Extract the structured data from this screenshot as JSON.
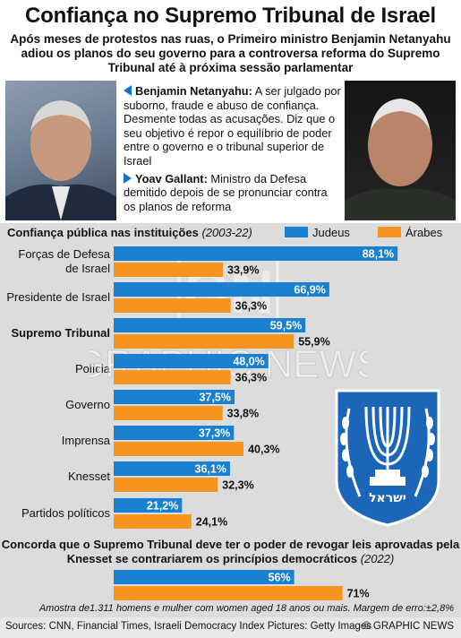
{
  "title": "Confiança no Supremo Tribunal de Israel",
  "subtitle": "Após meses de protestos nas ruas, o Primeiro ministro Benjamin Netanyahu adiou os planos do seu governo para a controversa reforma do Supremo Tribunal até à próxima sessão parlamentar",
  "bio": {
    "netanyahu_name": "Benjamin Netanyahu:",
    "netanyahu_text": "A ser julgado por suborno, fraude e abuso de confiança. Desmente todas as acusações. Diz que o seu objetivo é repor o equilíbrio de poder entre o governo e o tribunal superior de Israel",
    "gallant_name": "Yoav Gallant:",
    "gallant_text": "Ministro da Defesa demitido depois de se pronunciar contra os planos de reforma"
  },
  "colors": {
    "judeus": "#1a80d2",
    "arabes": "#f7941d",
    "accent": "#0e74c8",
    "panel": "#dcdcdc"
  },
  "chart_data": [
    {
      "type": "bar",
      "orientation": "horizontal",
      "title": "Confiança pública nas instituições",
      "title_years": "(2003-22)",
      "categories": [
        "Forças de Defesa de Israel",
        "Presidente de Israel",
        "Supremo Tribunal",
        "Polícia",
        "Governo",
        "Imprensa",
        "Knesset",
        "Partidos políticos"
      ],
      "category_lines": [
        [
          "Forças de Defesa",
          "de Israel"
        ],
        [
          "Presidente de Israel"
        ],
        [
          "Supremo Tribunal"
        ],
        [
          "Polícia"
        ],
        [
          "Governo"
        ],
        [
          "Imprensa"
        ],
        [
          "Knesset"
        ],
        [
          "Partidos políticos"
        ]
      ],
      "highlight_category": "Supremo Tribunal",
      "series": [
        {
          "name": "Judeus",
          "values": [
            88.1,
            66.9,
            59.5,
            48.0,
            37.5,
            37.3,
            36.1,
            21.2
          ],
          "labels": [
            "88,1%",
            "66,9%",
            "59,5%",
            "48,0%",
            "37,5%",
            "37,3%",
            "36,1%",
            "21,2%"
          ]
        },
        {
          "name": "Árabes",
          "values": [
            33.9,
            36.3,
            55.9,
            36.3,
            33.8,
            40.3,
            32.3,
            24.1
          ],
          "labels": [
            "33,9%",
            "36,3%",
            "55,9%",
            "36,3%",
            "33,8%",
            "40,3%",
            "32,3%",
            "24,1%"
          ]
        }
      ],
      "xlim": [
        0,
        100
      ],
      "legend_position": "top-right"
    },
    {
      "type": "bar",
      "orientation": "horizontal",
      "title": "Concorda que o Supremo Tribunal deve ter o poder de revogar leis aprovadas pela Knesset se contrariarem os princípios democráticos",
      "title_years": "(2022)",
      "categories": [
        ""
      ],
      "series": [
        {
          "name": "Judeus",
          "values": [
            56
          ],
          "labels": [
            "56%"
          ]
        },
        {
          "name": "Árabes",
          "values": [
            71
          ],
          "labels": [
            "71%"
          ]
        }
      ],
      "xlim": [
        0,
        100
      ]
    }
  ],
  "note": "Amostra de1.311 homens e mulher com women aged 18 anos ou mais. Margem de erro:±2,8%",
  "footer": {
    "sources": "Sources: CNN, Financial Times, Israeli Democracy Index  Pictures: Getty Images",
    "copyright": "© GRAPHIC NEWS"
  },
  "watermark": {
    "monogram": "GN",
    "text": "GRAPHIC NEWS"
  },
  "emblem": {
    "inscription": "ישראל"
  },
  "icons": [
    "pointer-left-icon",
    "pointer-right-icon",
    "israel-emblem-icon"
  ]
}
